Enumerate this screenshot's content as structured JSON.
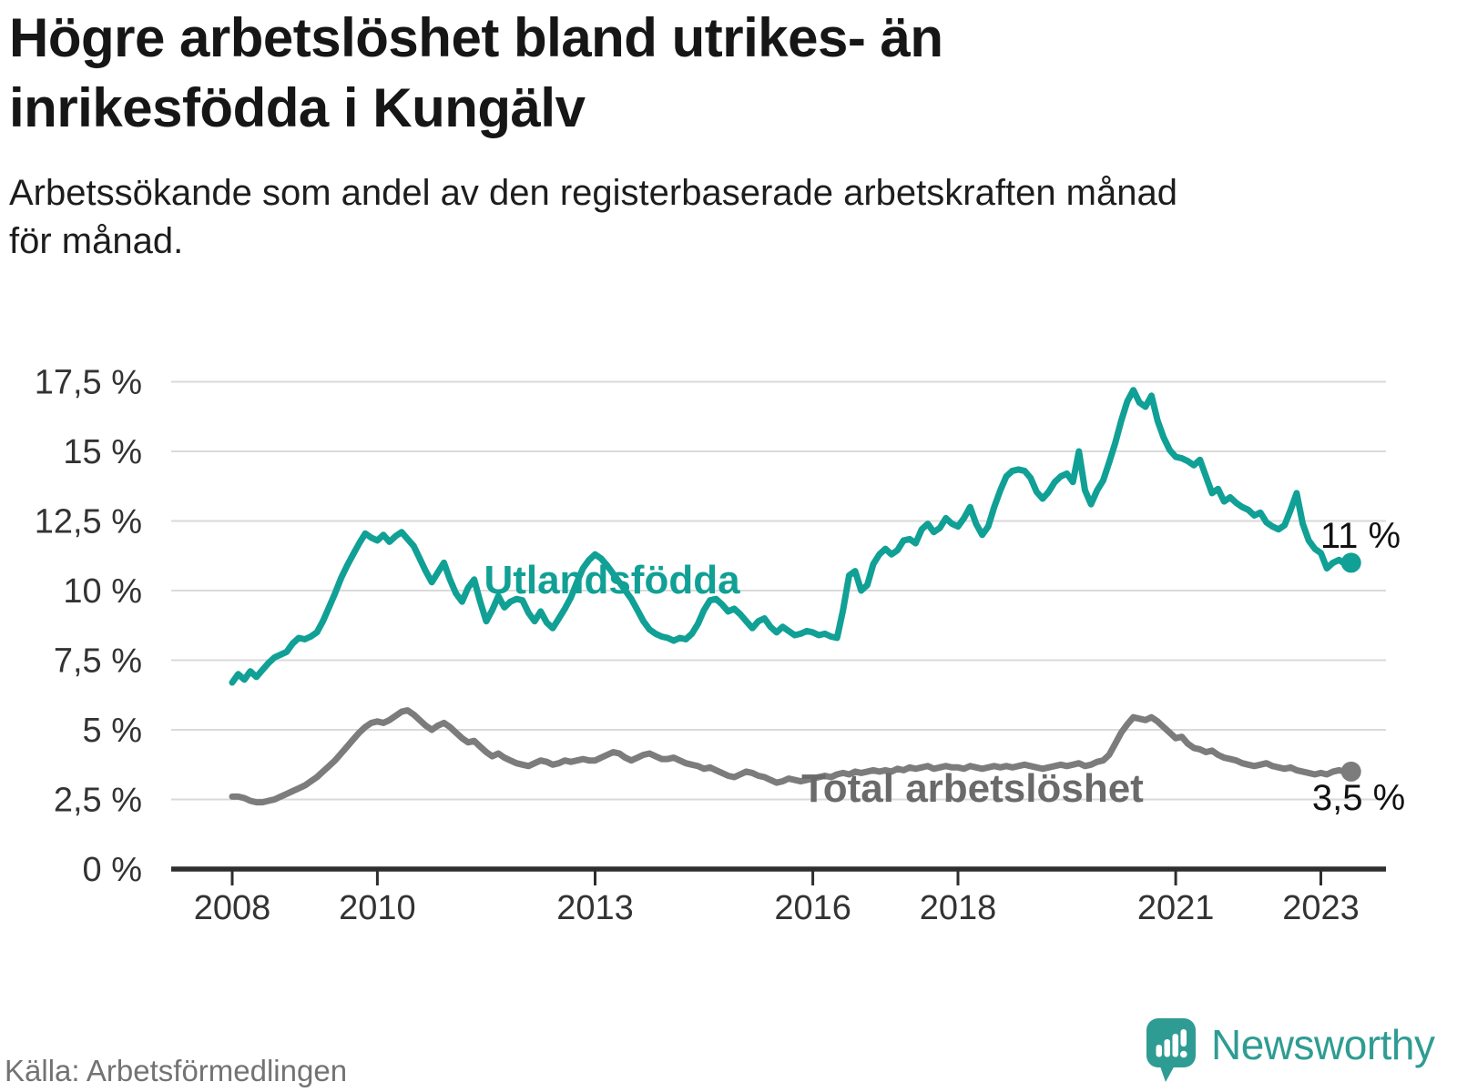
{
  "title": "Högre arbetslöshet bland utrikes- än\ninrikesfödda i Kungälv",
  "subtitle": "Arbetssökande som andel av den registerbaserade arbetskraften månad\nför månad.",
  "source": "Källa: Arbetsförmedlingen",
  "logo": {
    "text": "Newsworthy"
  },
  "colors": {
    "accent_teal": "#11a095",
    "line_gray": "#7c7c7c",
    "gray_label": "#6a6a6a",
    "grid": "#dadada",
    "axis": "#2e2e2e",
    "tick_text": "#333333",
    "end_label_text": "#111111",
    "logo_teal": "#2f9c93"
  },
  "chart_data": {
    "type": "line",
    "title": "Högre arbetslöshet bland utrikes- än inrikesfödda i Kungälv",
    "xlabel": "",
    "ylabel": "Arbetssökande som andel av den registerbaserade arbetskraften",
    "x_unit": "month",
    "x_start": "2008-01",
    "x_end": "2023-06",
    "ylim": [
      0,
      17.5
    ],
    "grid": true,
    "legend_position": "inline-labels",
    "y_ticks": [
      {
        "value": 0,
        "label": "0 %"
      },
      {
        "value": 2.5,
        "label": "2,5 %"
      },
      {
        "value": 5,
        "label": "5 %"
      },
      {
        "value": 7.5,
        "label": "7,5 %"
      },
      {
        "value": 10,
        "label": "10 %"
      },
      {
        "value": 12.5,
        "label": "12,5 %"
      },
      {
        "value": 15,
        "label": "15 %"
      },
      {
        "value": 17.5,
        "label": "17,5 %"
      }
    ],
    "x_ticks": [
      {
        "value": 2008,
        "label": "2008"
      },
      {
        "value": 2010,
        "label": "2010"
      },
      {
        "value": 2013,
        "label": "2013"
      },
      {
        "value": 2016,
        "label": "2016"
      },
      {
        "value": 2018,
        "label": "2018"
      },
      {
        "value": 2021,
        "label": "2021"
      },
      {
        "value": 2023,
        "label": "2023"
      }
    ],
    "series": [
      {
        "name": "Utlandsfödda",
        "color": "#11a095",
        "label_color": "#11a095",
        "end_label": "11 %",
        "last_value": 11.0,
        "values": [
          6.7,
          7.0,
          6.8,
          7.1,
          6.9,
          7.15,
          7.4,
          7.6,
          7.7,
          7.8,
          8.1,
          8.3,
          8.25,
          8.35,
          8.5,
          8.9,
          9.4,
          9.9,
          10.45,
          10.9,
          11.3,
          11.7,
          12.05,
          11.9,
          11.8,
          12.0,
          11.75,
          11.95,
          12.1,
          11.85,
          11.6,
          11.15,
          10.7,
          10.3,
          10.65,
          11.0,
          10.4,
          9.9,
          9.6,
          10.1,
          10.4,
          9.6,
          8.9,
          9.3,
          9.8,
          9.4,
          9.6,
          9.7,
          9.65,
          9.2,
          8.9,
          9.25,
          8.85,
          8.65,
          9.0,
          9.35,
          9.75,
          10.3,
          10.8,
          11.1,
          11.3,
          11.15,
          10.9,
          10.6,
          10.3,
          10.0,
          9.7,
          9.3,
          8.9,
          8.6,
          8.45,
          8.35,
          8.3,
          8.2,
          8.3,
          8.25,
          8.45,
          8.8,
          9.3,
          9.65,
          9.7,
          9.5,
          9.25,
          9.35,
          9.15,
          8.9,
          8.65,
          8.9,
          9.0,
          8.7,
          8.5,
          8.7,
          8.55,
          8.4,
          8.45,
          8.55,
          8.5,
          8.4,
          8.45,
          8.35,
          8.3,
          9.3,
          10.55,
          10.7,
          10.0,
          10.2,
          10.95,
          11.3,
          11.5,
          11.3,
          11.45,
          11.8,
          11.85,
          11.7,
          12.2,
          12.4,
          12.1,
          12.25,
          12.6,
          12.4,
          12.3,
          12.6,
          13.0,
          12.4,
          12.0,
          12.3,
          13.0,
          13.6,
          14.1,
          14.3,
          14.35,
          14.3,
          14.05,
          13.55,
          13.3,
          13.55,
          13.9,
          14.1,
          14.2,
          13.9,
          15.0,
          13.6,
          13.1,
          13.6,
          13.95,
          14.6,
          15.3,
          16.1,
          16.8,
          17.2,
          16.75,
          16.6,
          17.0,
          16.1,
          15.5,
          15.05,
          14.8,
          14.75,
          14.65,
          14.5,
          14.7,
          14.1,
          13.5,
          13.65,
          13.2,
          13.35,
          13.15,
          13.0,
          12.9,
          12.7,
          12.8,
          12.45,
          12.3,
          12.2,
          12.35,
          12.9,
          13.5,
          12.4,
          11.8,
          11.5,
          11.35,
          10.8,
          11.0,
          11.1,
          10.95,
          11.0
        ]
      },
      {
        "name": "Total arbetslöshet",
        "color": "#7c7c7c",
        "label_color": "#6a6a6a",
        "end_label": "3,5 %",
        "last_value": 3.5,
        "values": [
          2.6,
          2.6,
          2.55,
          2.45,
          2.4,
          2.4,
          2.45,
          2.5,
          2.6,
          2.7,
          2.8,
          2.9,
          3.0,
          3.15,
          3.3,
          3.5,
          3.7,
          3.9,
          4.15,
          4.4,
          4.65,
          4.9,
          5.1,
          5.25,
          5.3,
          5.25,
          5.35,
          5.5,
          5.65,
          5.7,
          5.55,
          5.35,
          5.15,
          5.0,
          5.15,
          5.25,
          5.1,
          4.9,
          4.7,
          4.55,
          4.6,
          4.4,
          4.2,
          4.05,
          4.15,
          4.0,
          3.9,
          3.8,
          3.75,
          3.7,
          3.8,
          3.9,
          3.85,
          3.75,
          3.8,
          3.9,
          3.85,
          3.9,
          3.95,
          3.9,
          3.9,
          4.0,
          4.1,
          4.2,
          4.15,
          4.0,
          3.9,
          4.0,
          4.1,
          4.15,
          4.05,
          3.95,
          3.95,
          4.0,
          3.9,
          3.8,
          3.75,
          3.7,
          3.6,
          3.65,
          3.55,
          3.45,
          3.35,
          3.3,
          3.4,
          3.5,
          3.45,
          3.35,
          3.3,
          3.2,
          3.1,
          3.15,
          3.25,
          3.2,
          3.15,
          3.2,
          3.25,
          3.3,
          3.35,
          3.3,
          3.4,
          3.45,
          3.4,
          3.5,
          3.45,
          3.5,
          3.55,
          3.5,
          3.55,
          3.5,
          3.6,
          3.55,
          3.65,
          3.6,
          3.65,
          3.7,
          3.6,
          3.65,
          3.7,
          3.65,
          3.65,
          3.6,
          3.7,
          3.65,
          3.6,
          3.65,
          3.7,
          3.65,
          3.7,
          3.65,
          3.7,
          3.75,
          3.7,
          3.65,
          3.6,
          3.65,
          3.7,
          3.75,
          3.7,
          3.75,
          3.8,
          3.7,
          3.75,
          3.85,
          3.9,
          4.1,
          4.5,
          4.9,
          5.2,
          5.45,
          5.4,
          5.35,
          5.45,
          5.3,
          5.1,
          4.9,
          4.7,
          4.75,
          4.5,
          4.35,
          4.3,
          4.2,
          4.25,
          4.1,
          4.0,
          3.95,
          3.9,
          3.8,
          3.75,
          3.7,
          3.75,
          3.8,
          3.7,
          3.65,
          3.6,
          3.65,
          3.55,
          3.5,
          3.45,
          3.4,
          3.45,
          3.4,
          3.5,
          3.55,
          3.5,
          3.5
        ]
      }
    ]
  }
}
